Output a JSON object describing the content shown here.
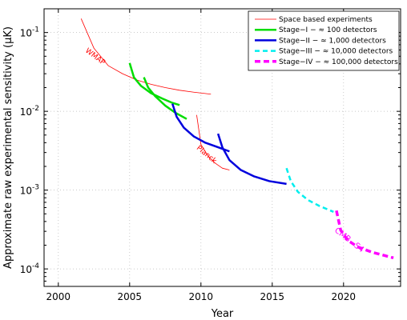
{
  "chart_data": {
    "type": "line",
    "title": "",
    "xlabel": "Year",
    "ylabel": "Approximate raw experimental sensitivity (μK)",
    "xlim": [
      1999,
      2024
    ],
    "ylim": [
      6e-05,
      0.2
    ],
    "yscale": "log",
    "grid": true,
    "legend_position": "top-right",
    "x_ticks": [
      2000,
      2005,
      2010,
      2015,
      2020
    ],
    "y_ticks": [
      {
        "value": 0.1,
        "base": "10",
        "exp": "-1"
      },
      {
        "value": 0.01,
        "base": "10",
        "exp": "-2"
      },
      {
        "value": 0.001,
        "base": "10",
        "exp": "-3"
      },
      {
        "value": 0.0001,
        "base": "10",
        "exp": "-4"
      }
    ],
    "legend": [
      {
        "label": "Space based experiments",
        "color": "#ff0000",
        "width": 0.8,
        "dash": ""
      },
      {
        "label": "Stage−I − ≈ 100 detectors",
        "color": "#00dd00",
        "width": 2.5,
        "dash": ""
      },
      {
        "label": "Stage−II − ≈ 1,000 detectors",
        "color": "#0000dd",
        "width": 2.5,
        "dash": ""
      },
      {
        "label": "Stage−III − ≈ 10,000 detectors",
        "color": "#00eeee",
        "width": 2.5,
        "dash": "6,4"
      },
      {
        "label": "Stage−IV − ≈ 100,000 detectors",
        "color": "#ff00ff",
        "width": 3.5,
        "dash": "7,4"
      }
    ],
    "series": [
      {
        "group": "space",
        "color": "#ff0000",
        "width": 0.8,
        "dash": "",
        "x": [
          2001.6,
          2002.5,
          2003.5,
          2004.5,
          2005.5,
          2006.5,
          2007.5,
          2008.5,
          2009.5,
          2010.7
        ],
        "y": [
          0.15,
          0.063,
          0.038,
          0.03,
          0.025,
          0.022,
          0.02,
          0.0185,
          0.0175,
          0.0165
        ]
      },
      {
        "group": "space",
        "color": "#ff0000",
        "width": 0.8,
        "dash": "",
        "x": [
          2009.7,
          2010,
          2010.5,
          2011,
          2011.5,
          2012
        ],
        "y": [
          0.009,
          0.0038,
          0.0027,
          0.0022,
          0.0019,
          0.0018
        ]
      },
      {
        "group": "stage1",
        "color": "#00dd00",
        "width": 2.5,
        "dash": "",
        "x": [
          2005,
          2005.3,
          2005.8,
          2006.5,
          2007.3,
          2008,
          2008.5
        ],
        "y": [
          0.041,
          0.027,
          0.021,
          0.017,
          0.0145,
          0.0128,
          0.012
        ]
      },
      {
        "group": "stage1",
        "color": "#00dd00",
        "width": 2.5,
        "dash": "",
        "x": [
          2006,
          2006.3,
          2006.8,
          2007.5,
          2008.2,
          2009
        ],
        "y": [
          0.027,
          0.02,
          0.0155,
          0.0118,
          0.0096,
          0.008
        ]
      },
      {
        "group": "stage2",
        "color": "#0000dd",
        "width": 2.5,
        "dash": "",
        "x": [
          2008,
          2008.3,
          2008.8,
          2009.5,
          2010.3,
          2011.2,
          2012
        ],
        "y": [
          0.0125,
          0.0085,
          0.0062,
          0.0048,
          0.004,
          0.0035,
          0.0031
        ]
      },
      {
        "group": "stage2",
        "color": "#0000dd",
        "width": 2.5,
        "dash": "",
        "x": [
          2011.2,
          2011.5,
          2012,
          2012.8,
          2013.7,
          2014.8,
          2016
        ],
        "y": [
          0.0052,
          0.0035,
          0.0024,
          0.0018,
          0.0015,
          0.0013,
          0.0012
        ]
      },
      {
        "group": "stage3",
        "color": "#00eeee",
        "width": 2.5,
        "dash": "6,4",
        "x": [
          2016,
          2016.3,
          2016.8,
          2017.5,
          2018.3,
          2019.3
        ],
        "y": [
          0.0019,
          0.0013,
          0.00095,
          0.00075,
          0.00063,
          0.00053
        ]
      },
      {
        "group": "stage4",
        "color": "#ff00ff",
        "width": 3.5,
        "dash": "7,4",
        "x": [
          2019.5,
          2019.8,
          2020.3,
          2021,
          2022,
          2023.5
        ],
        "y": [
          0.00055,
          0.00031,
          0.00023,
          0.00019,
          0.000163,
          0.000138
        ]
      }
    ],
    "annotations": [
      {
        "text": "WMAP",
        "x": 2002.5,
        "y": 0.047,
        "rotate": 37,
        "color": "#ff0000",
        "size": 9
      },
      {
        "text": "Planck",
        "x": 2010.3,
        "y": 0.0027,
        "rotate": 40,
        "color": "#ff0000",
        "size": 9
      },
      {
        "text": "CMB−S4",
        "x": 2020.3,
        "y": 0.00022,
        "rotate": 38,
        "color": "#ff00ff",
        "size": 10
      }
    ]
  }
}
